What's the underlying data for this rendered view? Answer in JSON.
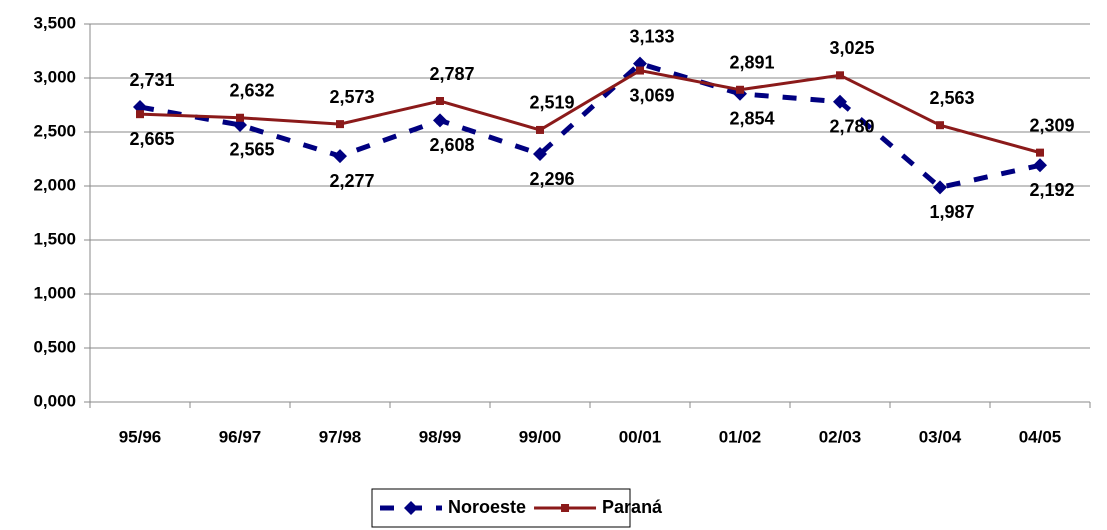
{
  "chart_data": {
    "type": "line",
    "categories": [
      "95/96",
      "96/97",
      "97/98",
      "98/99",
      "99/00",
      "00/01",
      "01/02",
      "02/03",
      "03/04",
      "04/05"
    ],
    "series": [
      {
        "name": "Noroeste",
        "color": "#000080",
        "marker": "diamond",
        "dashed": true,
        "values": [
          2.731,
          2.565,
          2.277,
          2.608,
          2.296,
          3.133,
          2.854,
          2.78,
          1.987,
          2.192
        ],
        "value_labels": [
          "2,731",
          "2,565",
          "2,277",
          "2,608",
          "2,296",
          "3,133",
          "2,854",
          "2,780",
          "1,987",
          "2,192"
        ]
      },
      {
        "name": "Paraná",
        "color": "#8b1a1a",
        "marker": "square",
        "dashed": false,
        "values": [
          2.665,
          2.632,
          2.573,
          2.787,
          2.519,
          3.069,
          2.891,
          3.025,
          2.563,
          2.309
        ],
        "value_labels": [
          "2,665",
          "2,632",
          "2,573",
          "2,787",
          "2,519",
          "3,069",
          "2,891",
          "3,025",
          "2,563",
          "2,309"
        ]
      }
    ],
    "ylim": [
      0,
      3.5
    ],
    "yticks": [
      {
        "value": 0,
        "label": "0,000"
      },
      {
        "value": 0.5,
        "label": "0,500"
      },
      {
        "value": 1,
        "label": "1,000"
      },
      {
        "value": 1.5,
        "label": "1,500"
      },
      {
        "value": 2,
        "label": "2,000"
      },
      {
        "value": 2.5,
        "label": "2,500"
      },
      {
        "value": 3,
        "label": "3,000"
      },
      {
        "value": 3.5,
        "label": "3,500"
      }
    ],
    "grid": true,
    "legend": "bottom"
  }
}
